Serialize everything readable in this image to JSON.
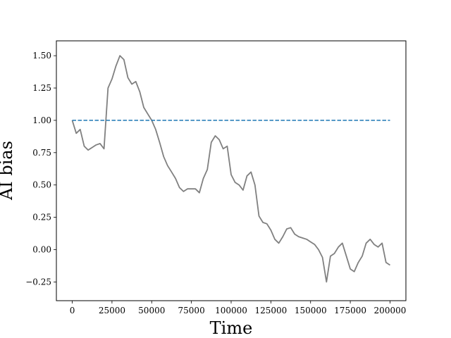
{
  "chart_data": {
    "type": "line",
    "title": "",
    "xlabel": "Time",
    "ylabel": "AI bias",
    "xlim": [
      -10000,
      210000
    ],
    "ylim": [
      -0.395,
      1.615
    ],
    "xticks": [
      0,
      25000,
      50000,
      75000,
      100000,
      125000,
      150000,
      175000,
      200000
    ],
    "xtick_labels": [
      "0",
      "25000",
      "50000",
      "75000",
      "100000",
      "125000",
      "150000",
      "175000",
      "200000"
    ],
    "yticks": [
      -0.25,
      0,
      0.25,
      0.5,
      0.75,
      1.0,
      1.25,
      1.5
    ],
    "ytick_labels": [
      "−0.25",
      "0.00",
      "0.25",
      "0.50",
      "0.75",
      "1.00",
      "1.25",
      "1.50"
    ],
    "grid": false,
    "series": [
      {
        "style": "solid",
        "color": "#808080",
        "x": [
          0,
          2500,
          5000,
          7500,
          10000,
          12500,
          15000,
          17500,
          20000,
          22500,
          25000,
          27500,
          30000,
          32500,
          35000,
          37500,
          40000,
          42500,
          45000,
          47500,
          50000,
          52500,
          55000,
          57500,
          60000,
          62500,
          65000,
          67500,
          70000,
          72500,
          75000,
          77500,
          80000,
          82500,
          85000,
          87500,
          90000,
          92500,
          95000,
          97500,
          100000,
          102500,
          105000,
          107500,
          110000,
          112500,
          115000,
          117500,
          120000,
          122500,
          125000,
          127500,
          130000,
          132500,
          135000,
          137500,
          140000,
          142500,
          145000,
          147500,
          150000,
          152500,
          155000,
          157500,
          160000,
          162500,
          165000,
          167500,
          170000,
          172500,
          175000,
          177500,
          180000,
          182500,
          185000,
          187500,
          190000,
          192500,
          195000,
          197500,
          200000
        ],
        "values": [
          1.0,
          0.9,
          0.93,
          0.8,
          0.77,
          0.79,
          0.81,
          0.82,
          0.78,
          1.25,
          1.32,
          1.42,
          1.5,
          1.47,
          1.33,
          1.28,
          1.3,
          1.22,
          1.1,
          1.05,
          1.0,
          0.93,
          0.83,
          0.72,
          0.65,
          0.6,
          0.55,
          0.48,
          0.45,
          0.47,
          0.47,
          0.47,
          0.44,
          0.55,
          0.62,
          0.83,
          0.88,
          0.85,
          0.78,
          0.8,
          0.58,
          0.52,
          0.5,
          0.46,
          0.57,
          0.6,
          0.5,
          0.26,
          0.21,
          0.2,
          0.15,
          0.08,
          0.05,
          0.1,
          0.16,
          0.17,
          0.12,
          0.1,
          0.09,
          0.08,
          0.06,
          0.04,
          0.0,
          -0.06,
          -0.25,
          -0.05,
          -0.03,
          0.02,
          0.05,
          -0.05,
          -0.15,
          -0.17,
          -0.1,
          -0.05,
          0.05,
          0.08,
          0.04,
          0.02,
          0.05,
          -0.1,
          -0.12
        ]
      },
      {
        "style": "dashed",
        "color": "#1f77b4",
        "x": [
          0,
          200000
        ],
        "values": [
          1.0,
          1.0
        ]
      }
    ]
  }
}
